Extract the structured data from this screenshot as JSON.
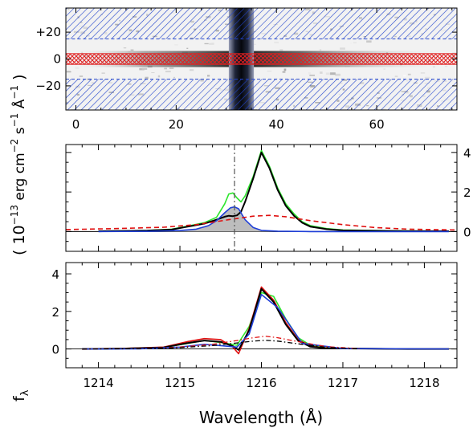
{
  "colors": {
    "black": "#000000",
    "green": "#2ee62e",
    "red": "#e01010",
    "blue": "#1f3fd8",
    "gray_fill": "#bdbdbd",
    "hatch_blue": "#2244cc",
    "hatch_red": "#e02020"
  },
  "chart_data": [
    {
      "type": "heatmap",
      "name": "2d-spectrum",
      "xlim": [
        -2,
        76
      ],
      "ylim": [
        -38,
        38
      ],
      "x_ticks": [
        "0",
        "20",
        "40",
        "60"
      ],
      "x_tick_values": [
        0,
        20,
        40,
        60
      ],
      "y_ticks": [
        "+20",
        "0",
        "−20"
      ],
      "y_tick_values": [
        20,
        0,
        -20
      ],
      "extraction_region": [
        -4,
        4
      ],
      "background_regions": [
        [
          15,
          38
        ],
        [
          -38,
          -15
        ]
      ],
      "dark_column": [
        30.5,
        35.5
      ]
    },
    {
      "type": "line",
      "name": "extracted-spectrum",
      "xlim": [
        1213.6,
        1218.4
      ],
      "ylim": [
        -1.0,
        4.4
      ],
      "right_ticks": [
        "0",
        "2",
        "4"
      ],
      "right_tick_values": [
        0,
        2,
        4
      ],
      "vline_x": 1215.67,
      "series": [
        {
          "color": "green",
          "x": [
            1214.0,
            1214.3,
            1214.6,
            1214.9,
            1215.1,
            1215.3,
            1215.45,
            1215.55,
            1215.6,
            1215.65,
            1215.7,
            1215.75,
            1215.8,
            1215.9,
            1216.0,
            1216.1,
            1216.2,
            1216.3,
            1216.4,
            1216.5,
            1216.6,
            1216.8,
            1217.0,
            1217.4,
            1217.8,
            1218.3
          ],
          "y": [
            0.02,
            0.03,
            0.05,
            0.12,
            0.28,
            0.45,
            0.72,
            1.4,
            1.9,
            1.95,
            1.7,
            1.5,
            1.8,
            2.8,
            4.1,
            3.3,
            2.2,
            1.4,
            0.9,
            0.5,
            0.3,
            0.15,
            0.08,
            0.05,
            0.03,
            0.02
          ]
        },
        {
          "color": "black",
          "x": [
            1214.0,
            1214.3,
            1214.6,
            1214.9,
            1215.1,
            1215.3,
            1215.45,
            1215.55,
            1215.6,
            1215.65,
            1215.7,
            1215.75,
            1215.8,
            1215.9,
            1216.0,
            1216.1,
            1216.2,
            1216.3,
            1216.4,
            1216.5,
            1216.6,
            1216.8,
            1217.0,
            1217.4,
            1217.8,
            1218.3
          ],
          "y": [
            0.02,
            0.03,
            0.05,
            0.1,
            0.25,
            0.4,
            0.6,
            0.75,
            0.8,
            0.78,
            0.82,
            1.0,
            1.5,
            2.7,
            4.0,
            3.2,
            2.1,
            1.3,
            0.8,
            0.45,
            0.25,
            0.12,
            0.06,
            0.04,
            0.02,
            0.02
          ]
        },
        {
          "color": "blue",
          "x": [
            1214.0,
            1214.6,
            1215.0,
            1215.2,
            1215.35,
            1215.45,
            1215.55,
            1215.62,
            1215.67,
            1215.72,
            1215.8,
            1215.9,
            1216.0,
            1216.2,
            1216.6,
            1217.2,
            1218.3
          ],
          "y": [
            0.0,
            0.01,
            0.05,
            0.12,
            0.3,
            0.55,
            0.95,
            1.2,
            1.25,
            1.15,
            0.6,
            0.2,
            0.06,
            0.02,
            0.0,
            0.0,
            0.0
          ]
        },
        {
          "color": "red",
          "dashed": true,
          "x": [
            1213.6,
            1214.2,
            1214.8,
            1215.2,
            1215.6,
            1215.9,
            1216.1,
            1216.3,
            1216.6,
            1217.0,
            1217.4,
            1217.8,
            1218.4
          ],
          "y": [
            0.1,
            0.15,
            0.22,
            0.35,
            0.6,
            0.78,
            0.82,
            0.75,
            0.55,
            0.35,
            0.2,
            0.12,
            0.08
          ]
        }
      ]
    },
    {
      "type": "line",
      "name": "model-comparison",
      "xlim": [
        1213.6,
        1218.4
      ],
      "ylim": [
        -1.0,
        4.6
      ],
      "x_ticks": [
        "1214",
        "1215",
        "1216",
        "1217",
        "1218"
      ],
      "x_tick_values": [
        1214,
        1215,
        1216,
        1217,
        1218
      ],
      "left_ticks": [
        "0",
        "2",
        "4"
      ],
      "left_tick_values": [
        0,
        2,
        4
      ],
      "series": [
        {
          "color": "green",
          "x": [
            1213.8,
            1214.3,
            1214.8,
            1215.1,
            1215.3,
            1215.5,
            1215.7,
            1215.85,
            1216.0,
            1216.15,
            1216.3,
            1216.45,
            1216.6,
            1216.8,
            1217.2,
            1217.8,
            1218.3
          ],
          "y": [
            0.0,
            0.02,
            0.08,
            0.3,
            0.45,
            0.35,
            0.2,
            1.2,
            3.0,
            2.8,
            1.6,
            0.6,
            0.2,
            0.05,
            0.02,
            0.0,
            0.0
          ]
        },
        {
          "color": "red",
          "x": [
            1213.8,
            1214.3,
            1214.8,
            1215.1,
            1215.3,
            1215.5,
            1215.65,
            1215.72,
            1215.85,
            1216.0,
            1216.15,
            1216.3,
            1216.45,
            1216.6,
            1216.8,
            1217.2,
            1217.8,
            1218.3
          ],
          "y": [
            0.0,
            0.03,
            0.1,
            0.4,
            0.55,
            0.5,
            0.1,
            -0.25,
            1.1,
            3.3,
            2.6,
            1.4,
            0.5,
            0.15,
            0.04,
            0.02,
            0.0,
            0.0
          ]
        },
        {
          "color": "black",
          "x": [
            1213.8,
            1214.3,
            1214.8,
            1215.1,
            1215.3,
            1215.5,
            1215.65,
            1215.72,
            1215.85,
            1216.0,
            1216.15,
            1216.3,
            1216.45,
            1216.6,
            1216.8,
            1217.2,
            1217.8,
            1218.3
          ],
          "y": [
            0.0,
            0.02,
            0.08,
            0.32,
            0.45,
            0.38,
            0.15,
            -0.05,
            1.0,
            3.2,
            2.5,
            1.3,
            0.45,
            0.12,
            0.03,
            0.02,
            0.0,
            0.0
          ]
        },
        {
          "color": "blue",
          "x": [
            1213.8,
            1214.5,
            1215.0,
            1215.3,
            1215.5,
            1215.7,
            1215.85,
            1216.0,
            1216.2,
            1216.5,
            1217.0,
            1218.3
          ],
          "y": [
            0.0,
            0.01,
            0.1,
            0.25,
            0.18,
            0.1,
            0.8,
            2.9,
            2.2,
            0.3,
            0.02,
            0.0
          ]
        },
        {
          "color": "red",
          "dashdot": true,
          "x": [
            1213.8,
            1214.5,
            1215.0,
            1215.4,
            1215.7,
            1215.9,
            1216.05,
            1216.2,
            1216.5,
            1216.8,
            1217.2
          ],
          "y": [
            0.0,
            0.03,
            0.1,
            0.25,
            0.45,
            0.6,
            0.68,
            0.6,
            0.35,
            0.12,
            0.02
          ]
        },
        {
          "color": "black",
          "dashdot": true,
          "x": [
            1213.8,
            1214.5,
            1215.0,
            1215.4,
            1215.7,
            1215.9,
            1216.05,
            1216.2,
            1216.5,
            1216.8,
            1217.2
          ],
          "y": [
            0.0,
            0.02,
            0.07,
            0.18,
            0.32,
            0.42,
            0.46,
            0.42,
            0.25,
            0.08,
            0.01
          ]
        }
      ]
    }
  ],
  "labels": {
    "xlabel": "Wavelength  (Å)",
    "ylabel_pre": "( 10",
    "ylabel_exp": "−13",
    "ylabel_unit1": " erg cm",
    "ylabel_exp2": "−2",
    "ylabel_unit2": " s",
    "ylabel_exp3": "−1",
    "ylabel_unit3": " Å",
    "ylabel_exp4": "−1",
    "ylabel_post": " )",
    "flambda_f": "f",
    "flambda_sub": "λ"
  }
}
